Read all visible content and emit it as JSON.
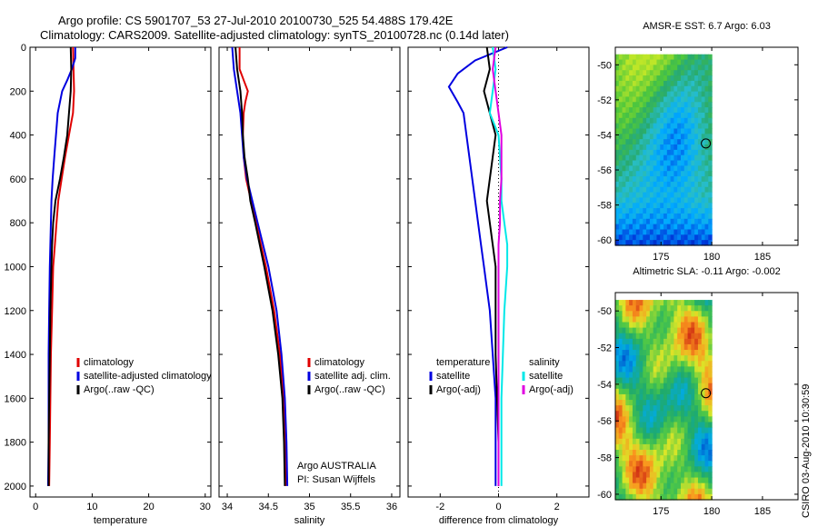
{
  "header": {
    "line1": "Argo profile: CS 5901707_53 27-Jul-2010 20100730_525 54.488S 179.42E",
    "line2": "Climatology: CARS2009. Satellite-adjusted climatology: synTS_20100728.nc (0.14d later)"
  },
  "footer": {
    "credit": "CSIRO 03-Aug-2010 10:30:59",
    "institution": "Argo AUSTRALIA",
    "pi": "PI: Susan Wijffels"
  },
  "colors": {
    "red": "#e00000",
    "blue": "#0000e0",
    "black": "#000000",
    "cyan": "#00e8e8",
    "magenta": "#e000e0"
  },
  "chart_data": [
    {
      "type": "line",
      "xlabel": "temperature",
      "ylim": [
        2050,
        0
      ],
      "xlim": [
        -1,
        31
      ],
      "xticks": [
        0,
        10,
        20,
        30
      ],
      "yticks": [
        0,
        200,
        400,
        600,
        800,
        1000,
        1200,
        1400,
        1600,
        1800,
        2000
      ],
      "legend": [
        "climatology",
        "satellite-adjusted climatology",
        "Argo(..raw -QC)"
      ],
      "series": [
        {
          "name": "climatology",
          "color": "red",
          "depth": [
            0,
            100,
            200,
            300,
            400,
            500,
            600,
            700,
            800,
            900,
            1000,
            1200,
            1400,
            1600,
            1800,
            2000
          ],
          "values": [
            6.6,
            6.7,
            6.8,
            6.6,
            5.9,
            5.2,
            4.6,
            4.0,
            3.7,
            3.4,
            3.1,
            2.9,
            2.7,
            2.6,
            2.5,
            2.4
          ]
        },
        {
          "name": "satellite-adjusted climatology",
          "color": "blue",
          "depth": [
            0,
            50,
            100,
            150,
            200,
            300,
            400,
            500,
            600,
            700,
            800,
            900,
            1000,
            1200,
            1400,
            1600,
            1800,
            2000
          ],
          "values": [
            7.0,
            7.0,
            6.4,
            5.6,
            4.7,
            3.9,
            3.6,
            3.3,
            3.0,
            2.8,
            2.7,
            2.6,
            2.5,
            2.4,
            2.3,
            2.3,
            2.3,
            2.2
          ]
        },
        {
          "name": "Argo(..raw -QC)",
          "color": "black",
          "depth": [
            0,
            100,
            200,
            300,
            400,
            500,
            600,
            700,
            800,
            900,
            1000,
            1200,
            1400,
            1600,
            1800,
            2000
          ],
          "values": [
            6.2,
            6.3,
            6.2,
            5.9,
            5.6,
            5.0,
            4.3,
            3.5,
            3.1,
            2.9,
            2.8,
            2.6,
            2.5,
            2.4,
            2.3,
            2.3
          ]
        }
      ]
    },
    {
      "type": "line",
      "xlabel": "salinity",
      "ylim": [
        2050,
        0
      ],
      "xlim": [
        33.9,
        36.1
      ],
      "xticks": [
        "34",
        "34.5",
        "35",
        "35.5",
        "36"
      ],
      "legend": [
        "climatology",
        "satellite adj. clim.",
        "Argo(..raw -QC)"
      ],
      "series": [
        {
          "name": "climatology",
          "color": "red",
          "depth": [
            0,
            100,
            150,
            200,
            250,
            300,
            400,
            500,
            600,
            800,
            1000,
            1200,
            1400,
            1600,
            1800,
            2000
          ],
          "values": [
            34.15,
            34.15,
            34.2,
            34.25,
            34.22,
            34.2,
            34.19,
            34.2,
            34.23,
            34.35,
            34.47,
            34.57,
            34.64,
            34.68,
            34.7,
            34.71
          ]
        },
        {
          "name": "satellite adj. clim.",
          "color": "blue",
          "depth": [
            0,
            100,
            150,
            200,
            250,
            300,
            400,
            500,
            600,
            800,
            1000,
            1200,
            1400,
            1600,
            1800,
            2000
          ],
          "values": [
            34.06,
            34.08,
            34.1,
            34.12,
            34.14,
            34.16,
            34.18,
            34.2,
            34.24,
            34.37,
            34.5,
            34.6,
            34.66,
            34.7,
            34.72,
            34.73
          ]
        },
        {
          "name": "Argo(..raw -QC)",
          "color": "black",
          "depth": [
            0,
            100,
            200,
            300,
            400,
            500,
            600,
            700,
            800,
            1000,
            1200,
            1400,
            1600,
            1800,
            2000
          ],
          "values": [
            34.1,
            34.12,
            34.16,
            34.18,
            34.19,
            34.21,
            34.25,
            34.28,
            34.34,
            34.45,
            34.55,
            34.62,
            34.67,
            34.69,
            34.7
          ]
        }
      ]
    },
    {
      "type": "line",
      "xlabel": "difference from climatology",
      "ylim": [
        2050,
        0
      ],
      "xlim": [
        -3.1,
        3.1
      ],
      "xticks": [
        -2,
        0,
        2
      ],
      "legend_temperature": {
        "title": "temperature",
        "items": [
          "satellite",
          "Argo(-adj)"
        ]
      },
      "legend_salinity": {
        "title": "salinity",
        "items": [
          "satellite",
          "Argo(-adj)"
        ]
      },
      "series": [
        {
          "name": "temperature satellite",
          "color": "blue",
          "depth": [
            0,
            60,
            120,
            180,
            250,
            300,
            400,
            500,
            600,
            700,
            800,
            900,
            1000,
            1200,
            1400,
            1600,
            1800,
            2000
          ],
          "values": [
            0.3,
            -0.8,
            -1.4,
            -1.7,
            -1.4,
            -1.2,
            -1.1,
            -1.0,
            -0.9,
            -0.8,
            -0.7,
            -0.6,
            -0.5,
            -0.3,
            -0.2,
            -0.1,
            -0.1,
            -0.1
          ]
        },
        {
          "name": "temperature Argo(-adj)",
          "color": "black",
          "depth": [
            0,
            100,
            200,
            300,
            400,
            500,
            600,
            700,
            800,
            900,
            1000,
            1200,
            1400,
            1600,
            1800,
            2000
          ],
          "values": [
            -0.4,
            -0.3,
            -0.5,
            -0.3,
            -0.1,
            -0.2,
            -0.3,
            -0.4,
            -0.3,
            -0.2,
            -0.1,
            -0.1,
            -0.1,
            -0.05,
            0.0,
            0.0
          ]
        },
        {
          "name": "salinity satellite",
          "color": "cyan",
          "depth": [
            0,
            100,
            200,
            300,
            400,
            500,
            600,
            700,
            800,
            900,
            1000,
            1200,
            1400,
            1600,
            1800,
            2000
          ],
          "values": [
            -0.2,
            -0.1,
            -0.2,
            -0.3,
            0.0,
            0.05,
            0.1,
            0.1,
            0.2,
            0.3,
            0.3,
            0.2,
            0.15,
            0.1,
            0.1,
            0.1
          ]
        },
        {
          "name": "salinity Argo(-adj)",
          "color": "magenta",
          "depth": [
            0,
            100,
            200,
            300,
            400,
            500,
            600,
            700,
            800,
            900,
            1000,
            1200,
            1400,
            1600,
            1800,
            2000
          ],
          "values": [
            -0.1,
            -0.2,
            -0.1,
            0.0,
            0.1,
            0.1,
            0.1,
            0.05,
            0.05,
            0.0,
            0.0,
            0.0,
            0.0,
            0.0,
            0.0,
            0.0
          ]
        }
      ]
    },
    {
      "type": "heatmap",
      "title": "AMSR-E SST: 6.7 Argo: 6.03",
      "xlim": [
        170.5,
        188.5
      ],
      "ylim": [
        -60.3,
        -49
      ],
      "xticks": [
        175,
        180,
        185
      ],
      "yticks": [
        -50,
        -52,
        -54,
        -56,
        -58,
        -60
      ],
      "marker": {
        "lon": 179.42,
        "lat": -54.488
      }
    },
    {
      "type": "heatmap",
      "title": "Altimetric SLA: -0.11 Argo: -0.002",
      "xlim": [
        170.5,
        188.5
      ],
      "ylim": [
        -60.3,
        -49
      ],
      "xticks": [
        175,
        180,
        185
      ],
      "yticks": [
        -50,
        -52,
        -54,
        -56,
        -58,
        -60
      ],
      "marker": {
        "lon": 179.42,
        "lat": -54.488
      }
    }
  ]
}
